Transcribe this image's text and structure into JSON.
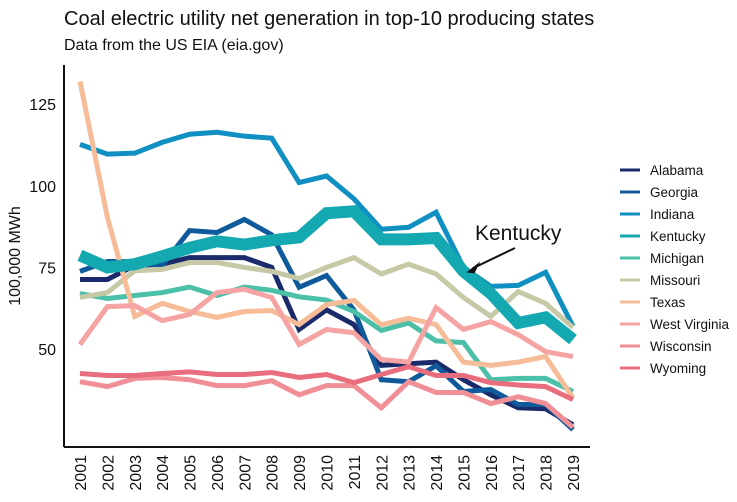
{
  "chart_data": {
    "type": "line",
    "title": "Coal electric utility net generation in top-10 producing states",
    "subtitle": "Data from the US EIA (eia.gov)",
    "xlabel": "",
    "ylabel": "100,000 MWh",
    "ylim": [
      20,
      137
    ],
    "yticks": [
      50,
      75,
      100,
      125
    ],
    "x": [
      2001,
      2002,
      2003,
      2004,
      2005,
      2006,
      2007,
      2008,
      2009,
      2010,
      2011,
      2012,
      2013,
      2014,
      2015,
      2016,
      2017,
      2018,
      2019
    ],
    "grid": false,
    "legend_position": "right",
    "annotation": {
      "text": "Kentucky",
      "points_to": "Kentucky",
      "x": 2015
    },
    "highlight_series": "Kentucky",
    "series": [
      {
        "name": "Alabama",
        "color": "#1b2a6b",
        "values": [
          71.3,
          71.3,
          75.6,
          76,
          78,
          78,
          78,
          75,
          56,
          62,
          57.5,
          45,
          45.5,
          46,
          40.6,
          36,
          32,
          31.7,
          26.8
        ]
      },
      {
        "name": "Georgia",
        "color": "#0f5a9a",
        "values": [
          73.8,
          76.8,
          76.8,
          75.6,
          86.3,
          85.7,
          89.7,
          85,
          68.9,
          72.5,
          62,
          40.6,
          40,
          44.9,
          37,
          37.6,
          33,
          33,
          25.3
        ]
      },
      {
        "name": "Indiana",
        "color": "#0f8fc2",
        "values": [
          112.7,
          109.7,
          110,
          113.3,
          115.8,
          116.4,
          115.2,
          114.6,
          101,
          103,
          96,
          86.7,
          87.3,
          91.9,
          75,
          69.2,
          69.5,
          73.5,
          57
        ]
      },
      {
        "name": "Kentucky",
        "color": "#14a8b0",
        "values": [
          78.7,
          75,
          76,
          78.4,
          81,
          83,
          82,
          83.3,
          84.2,
          91.6,
          92.2,
          83.6,
          83.6,
          84,
          73.8,
          67,
          58,
          59.7,
          52.9
        ]
      },
      {
        "name": "Michigan",
        "color": "#4bbfa8",
        "values": [
          67,
          65.5,
          66.4,
          67.3,
          69,
          66.4,
          69,
          68,
          66,
          65,
          61.5,
          55.7,
          58,
          52.5,
          52,
          40.6,
          41,
          41,
          37
        ]
      },
      {
        "name": "Missouri",
        "color": "#c7c9a6",
        "values": [
          65.8,
          67.3,
          74,
          74.4,
          76.5,
          76.5,
          75,
          73.8,
          71.6,
          75,
          78,
          73,
          76,
          73,
          65.8,
          60,
          67.6,
          64,
          56.6
        ]
      },
      {
        "name": "Texas",
        "color": "#f6bc98",
        "values": [
          132,
          90.3,
          60,
          64,
          61.5,
          59.7,
          61.5,
          61.8,
          57.5,
          63.6,
          64.9,
          57.5,
          59.4,
          57.5,
          46,
          45,
          46,
          47.7,
          35
        ]
      },
      {
        "name": "West Virginia",
        "color": "#f5a3a3",
        "values": [
          51.4,
          63,
          63.3,
          58.7,
          60.6,
          67.3,
          68.3,
          65.8,
          51.4,
          56,
          55,
          46.8,
          46,
          62.7,
          56,
          58.4,
          54.4,
          49.2,
          47.7
        ]
      },
      {
        "name": "Wisconsin",
        "color": "#f08f95",
        "values": [
          40,
          38.5,
          41,
          41.3,
          40.6,
          38.8,
          38.8,
          40.3,
          36,
          38.8,
          38.8,
          32,
          40,
          36.7,
          36.7,
          33.3,
          35.4,
          33.3,
          26
        ]
      },
      {
        "name": "Wyoming",
        "color": "#e86d7d",
        "values": [
          42.5,
          41.9,
          41.9,
          42.5,
          43,
          42.2,
          42.2,
          42.8,
          41.3,
          42.2,
          39.7,
          42.2,
          44.6,
          41.9,
          41.9,
          39.7,
          39,
          38.5,
          34.5
        ]
      }
    ]
  }
}
